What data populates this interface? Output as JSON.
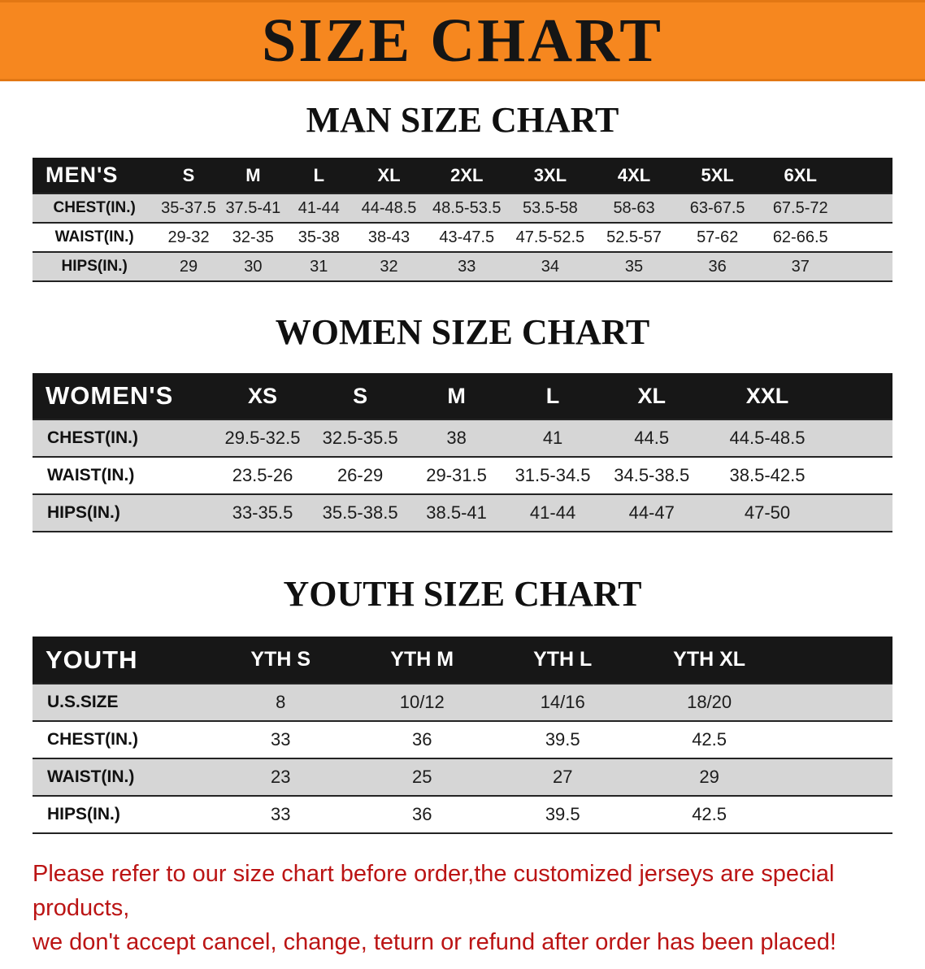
{
  "banner": {
    "title": "SIZE CHART"
  },
  "men": {
    "heading": "MAN SIZE CHART",
    "table": {
      "header": [
        "MEN'S",
        "S",
        "M",
        "L",
        "XL",
        "2XL",
        "3XL",
        "4XL",
        "5XL",
        "6XL"
      ],
      "rows": [
        {
          "label": "CHEST(IN.)",
          "values": [
            "35-37.5",
            "37.5-41",
            "41-44",
            "44-48.5",
            "48.5-53.5",
            "53.5-58",
            "58-63",
            "63-67.5",
            "67.5-72"
          ]
        },
        {
          "label": "WAIST(IN.)",
          "values": [
            "29-32",
            "32-35",
            "35-38",
            "38-43",
            "43-47.5",
            "47.5-52.5",
            "52.5-57",
            "57-62",
            "62-66.5"
          ]
        },
        {
          "label": "HIPS(IN.)",
          "values": [
            "29",
            "30",
            "31",
            "32",
            "33",
            "34",
            "35",
            "36",
            "37"
          ]
        }
      ]
    }
  },
  "women": {
    "heading": "WOMEN SIZE CHART",
    "table": {
      "header": [
        "WOMEN'S",
        "XS",
        "S",
        "M",
        "L",
        "XL",
        "XXL"
      ],
      "rows": [
        {
          "label": "CHEST(IN.)",
          "values": [
            "29.5-32.5",
            "32.5-35.5",
            "38",
            "41",
            "44.5",
            "44.5-48.5"
          ]
        },
        {
          "label": "WAIST(IN.)",
          "values": [
            "23.5-26",
            "26-29",
            "29-31.5",
            "31.5-34.5",
            "34.5-38.5",
            "38.5-42.5"
          ]
        },
        {
          "label": "HIPS(IN.)",
          "values": [
            "33-35.5",
            "35.5-38.5",
            "38.5-41",
            "41-44",
            "44-47",
            "47-50"
          ]
        }
      ]
    }
  },
  "youth": {
    "heading": "YOUTH SIZE CHART",
    "table": {
      "header": [
        "YOUTH",
        "YTH S",
        "YTH M",
        "YTH L",
        "YTH XL"
      ],
      "rows": [
        {
          "label": "U.S.SIZE",
          "values": [
            "8",
            "10/12",
            "14/16",
            "18/20"
          ]
        },
        {
          "label": "CHEST(IN.)",
          "values": [
            "33",
            "36",
            "39.5",
            "42.5"
          ]
        },
        {
          "label": "WAIST(IN.)",
          "values": [
            "23",
            "25",
            "27",
            "29"
          ]
        },
        {
          "label": "HIPS(IN.)",
          "values": [
            "33",
            "36",
            "39.5",
            "42.5"
          ]
        }
      ]
    }
  },
  "disclaimer": {
    "lines": [
      "Please refer to our size chart before order,the customized jerseys are special products,",
      "we don't accept cancel, change, teturn or refund after order has been placed!"
    ]
  },
  "colors": {
    "banner_orange": "#f6871f",
    "table_header_black": "#171717",
    "row_stripe_gray": "#d6d6d6",
    "disclaimer_red": "#bb1414"
  }
}
